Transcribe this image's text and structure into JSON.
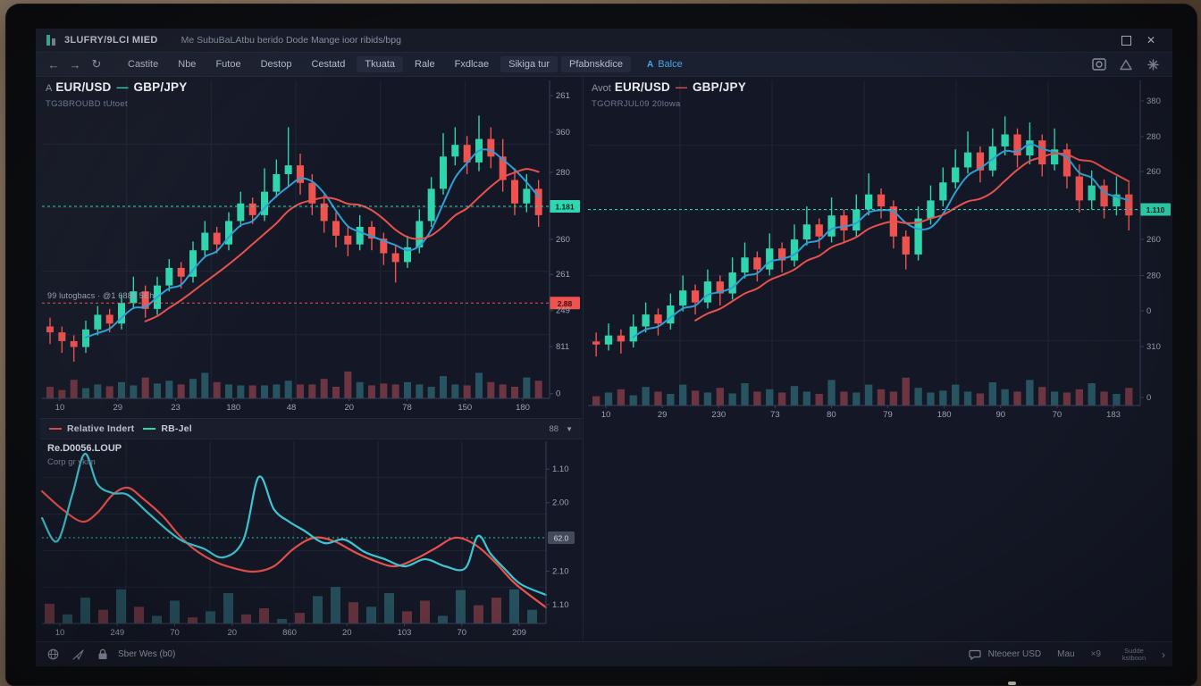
{
  "window": {
    "title": "3LUFRY/9LCI MIED",
    "subtitle": "Me SubuBaLAtbu berido Dode Mange ioor ribids/bpg"
  },
  "toolbar": {
    "items": [
      {
        "label": "Castite",
        "chip": false
      },
      {
        "label": "Nbe",
        "chip": false
      },
      {
        "label": "Futoe",
        "chip": false
      },
      {
        "label": "Destop",
        "chip": false
      },
      {
        "label": "Cestatd",
        "chip": false
      },
      {
        "label": "Tkuata",
        "chip": true
      },
      {
        "label": "Rale",
        "chip": false
      },
      {
        "label": "Fxdlcae",
        "chip": false
      },
      {
        "label": "Sikiga tur",
        "chip": true
      },
      {
        "label": "Pfabnskdice",
        "chip": true
      }
    ],
    "action_label": "Balce"
  },
  "status_bar": {
    "left_label": "Sber Wes (b0)",
    "items": [
      "Nteoeer USD",
      "Mau"
    ],
    "shortcut": "×9",
    "note": "Sudde\nkstboon"
  },
  "colors": {
    "up": "#2ed5ae",
    "down": "#ef5350",
    "ma_fast": "#2e9fd6",
    "ma_slow": "#e8514d",
    "vol_up": "#2b5f6b",
    "vol_down": "#7c3b46",
    "grid": "#1f2537",
    "axis": "#39415a",
    "label": "#9aa3b5",
    "accent_teal": "#2fd6b2",
    "accent_red": "#ef5350",
    "accent_blue": "#4ea3e8"
  },
  "chart_data": [
    {
      "id": "eurusd-left",
      "type": "candlestick",
      "prefix": "A",
      "symbol": "EUR/USD",
      "compare": "GBP/JPY",
      "subtitle": "TG3BROUBD  tUtoet",
      "overlay_note": "99 lutogbacs · @1 6888   5Eh",
      "legend_dash_color": "#2fd6b2",
      "ylim": [
        0,
        100
      ],
      "candles": [
        [
          16,
          14,
          10,
          19
        ],
        [
          14,
          11,
          7,
          16
        ],
        [
          11,
          9,
          4,
          13
        ],
        [
          9,
          15,
          7,
          18
        ],
        [
          15,
          20,
          13,
          23
        ],
        [
          20,
          17,
          14,
          22
        ],
        [
          17,
          24,
          15,
          27
        ],
        [
          24,
          28,
          22,
          33
        ],
        [
          28,
          22,
          19,
          30
        ],
        [
          22,
          30,
          20,
          33
        ],
        [
          30,
          36,
          28,
          39
        ],
        [
          36,
          33,
          29,
          38
        ],
        [
          33,
          42,
          31,
          45
        ],
        [
          42,
          48,
          40,
          52
        ],
        [
          48,
          44,
          41,
          50
        ],
        [
          44,
          52,
          42,
          55
        ],
        [
          52,
          58,
          50,
          62
        ],
        [
          58,
          54,
          51,
          60
        ],
        [
          54,
          62,
          52,
          70
        ],
        [
          62,
          68,
          60,
          73
        ],
        [
          68,
          71,
          64,
          84
        ],
        [
          71,
          65,
          61,
          75
        ],
        [
          65,
          58,
          54,
          68
        ],
        [
          58,
          52,
          48,
          61
        ],
        [
          52,
          47,
          43,
          55
        ],
        [
          47,
          44,
          40,
          50
        ],
        [
          44,
          50,
          42,
          54
        ],
        [
          50,
          46,
          42,
          52
        ],
        [
          46,
          41,
          37,
          48
        ],
        [
          41,
          38,
          31,
          44
        ],
        [
          38,
          43,
          36,
          47
        ],
        [
          43,
          52,
          41,
          56
        ],
        [
          52,
          63,
          50,
          67
        ],
        [
          63,
          74,
          61,
          82
        ],
        [
          74,
          78,
          71,
          84
        ],
        [
          78,
          72,
          68,
          81
        ],
        [
          72,
          80,
          69,
          88
        ],
        [
          80,
          74,
          70,
          84
        ],
        [
          74,
          66,
          62,
          80
        ],
        [
          66,
          58,
          54,
          70
        ],
        [
          58,
          63,
          55,
          68
        ],
        [
          63,
          54,
          50,
          66
        ]
      ],
      "volumes": [
        25,
        18,
        40,
        22,
        30,
        26,
        35,
        28,
        45,
        32,
        38,
        30,
        42,
        55,
        35,
        30,
        28,
        28,
        28,
        30,
        38,
        30,
        30,
        42,
        25,
        58,
        35,
        28,
        32,
        30,
        35,
        30,
        25,
        48,
        30,
        28,
        55,
        35,
        30,
        25,
        45,
        38
      ],
      "ma_fast_window": 4,
      "ma_slow_window": 9,
      "markers": [
        {
          "value": 57,
          "color": "#2fd6b2",
          "tag": "1.181",
          "tag_text": "#06261f"
        },
        {
          "value": 24,
          "color": "#ef5350",
          "tag": "2.88",
          "tag_text": "#3a0d0d"
        }
      ],
      "y_labels": [
        [
          "261",
          0.048
        ],
        [
          "360",
          0.163
        ],
        [
          "280",
          0.289
        ],
        [
          "260",
          0.5
        ],
        [
          "261",
          0.61
        ],
        [
          "249",
          0.724
        ],
        [
          "811",
          0.837
        ],
        [
          "0",
          0.985
        ]
      ],
      "x_labels": [
        "10",
        "29",
        "23",
        "180",
        "48",
        "20",
        "78",
        "150",
        "180"
      ]
    },
    {
      "id": "eurusd-right",
      "type": "candlestick",
      "prefix": "Avot",
      "symbol": "EUR/USD",
      "compare": "GBP/JPY",
      "subtitle": "TGORRJUL09  20lowa",
      "overlay_note": "",
      "legend_dash_color": "#e8514d",
      "ylim": [
        0,
        100
      ],
      "candles": [
        [
          13,
          12,
          8,
          16
        ],
        [
          12,
          15,
          10,
          19
        ],
        [
          15,
          13,
          9,
          17
        ],
        [
          13,
          18,
          11,
          22
        ],
        [
          18,
          22,
          16,
          26
        ],
        [
          22,
          19,
          15,
          24
        ],
        [
          19,
          25,
          17,
          29
        ],
        [
          25,
          30,
          23,
          35
        ],
        [
          30,
          26,
          22,
          32
        ],
        [
          26,
          33,
          24,
          37
        ],
        [
          33,
          29,
          25,
          35
        ],
        [
          29,
          36,
          27,
          41
        ],
        [
          36,
          41,
          34,
          46
        ],
        [
          41,
          37,
          33,
          43
        ],
        [
          37,
          44,
          35,
          49
        ],
        [
          44,
          40,
          36,
          46
        ],
        [
          40,
          47,
          38,
          52
        ],
        [
          47,
          52,
          45,
          58
        ],
        [
          52,
          48,
          44,
          54
        ],
        [
          48,
          55,
          46,
          61
        ],
        [
          55,
          50,
          46,
          57
        ],
        [
          50,
          57,
          48,
          62
        ],
        [
          57,
          62,
          55,
          69
        ],
        [
          62,
          58,
          54,
          64
        ],
        [
          58,
          48,
          44,
          60
        ],
        [
          48,
          42,
          37,
          50
        ],
        [
          42,
          54,
          40,
          58
        ],
        [
          54,
          60,
          52,
          65
        ],
        [
          60,
          66,
          58,
          71
        ],
        [
          66,
          71,
          64,
          77
        ],
        [
          71,
          76,
          69,
          83
        ],
        [
          76,
          70,
          66,
          78
        ],
        [
          70,
          78,
          68,
          84
        ],
        [
          78,
          82,
          75,
          88
        ],
        [
          82,
          75,
          71,
          84
        ],
        [
          75,
          80,
          72,
          86
        ],
        [
          80,
          72,
          68,
          82
        ],
        [
          72,
          77,
          70,
          84
        ],
        [
          77,
          68,
          64,
          79
        ],
        [
          68,
          60,
          56,
          72
        ],
        [
          60,
          65,
          57,
          70
        ],
        [
          65,
          58,
          54,
          67
        ],
        [
          58,
          62,
          55,
          68
        ],
        [
          62,
          55,
          50,
          66
        ]
      ],
      "volumes": [
        20,
        28,
        35,
        22,
        40,
        30,
        25,
        45,
        32,
        28,
        38,
        26,
        48,
        30,
        35,
        28,
        42,
        30,
        25,
        55,
        30,
        28,
        45,
        35,
        30,
        60,
        38,
        28,
        32,
        45,
        30,
        26,
        50,
        35,
        30,
        55,
        40,
        30,
        28,
        35,
        48,
        30,
        25,
        38
      ],
      "ma_fast_window": 4,
      "ma_slow_window": 9,
      "markers": [
        {
          "value": 57,
          "color": "#2fd6b2",
          "tag": "1.110",
          "tag_text": "#06261f"
        }
      ],
      "y_labels": [
        [
          "380",
          0.063
        ],
        [
          "280",
          0.173
        ],
        [
          "260",
          0.28
        ],
        [
          "260",
          0.489
        ],
        [
          "280",
          0.6
        ],
        [
          "0",
          0.709
        ],
        [
          "310",
          0.819
        ],
        [
          "0",
          0.975
        ]
      ],
      "x_labels": [
        "10",
        "29",
        "230",
        "73",
        "80",
        "79",
        "180",
        "90",
        "70",
        "183"
      ]
    },
    {
      "id": "rsi",
      "type": "line",
      "title": "Re.D0056.LOUP",
      "subtitle": "Corp gr vkim",
      "period_label": "88",
      "legend": [
        {
          "label": "Relative Indert",
          "color": "#e8514d"
        },
        {
          "label": "RB-Jel",
          "color": "#2fd6b2"
        }
      ],
      "series": [
        {
          "name": "rb-jel",
          "color": "#3ec6d0",
          "points": [
            [
              0,
              57
            ],
            [
              0.03,
              44
            ],
            [
              0.06,
              70
            ],
            [
              0.085,
              93
            ],
            [
              0.11,
              76
            ],
            [
              0.14,
              71
            ],
            [
              0.17,
              70
            ],
            [
              0.21,
              60
            ],
            [
              0.25,
              50
            ],
            [
              0.28,
              44
            ],
            [
              0.32,
              40
            ],
            [
              0.36,
              35
            ],
            [
              0.4,
              45
            ],
            [
              0.43,
              80
            ],
            [
              0.46,
              62
            ],
            [
              0.49,
              55
            ],
            [
              0.52,
              50
            ],
            [
              0.56,
              43
            ],
            [
              0.6,
              45
            ],
            [
              0.64,
              38
            ],
            [
              0.68,
              34
            ],
            [
              0.72,
              30
            ],
            [
              0.76,
              34
            ],
            [
              0.8,
              30
            ],
            [
              0.84,
              29
            ],
            [
              0.865,
              47
            ],
            [
              0.89,
              37
            ],
            [
              0.92,
              28
            ],
            [
              0.95,
              20
            ],
            [
              1,
              14
            ]
          ]
        },
        {
          "name": "relative-indert",
          "color": "#e8514d",
          "points": [
            [
              0,
              72
            ],
            [
              0.04,
              62
            ],
            [
              0.08,
              55
            ],
            [
              0.11,
              60
            ],
            [
              0.14,
              70
            ],
            [
              0.17,
              74
            ],
            [
              0.2,
              68
            ],
            [
              0.24,
              58
            ],
            [
              0.27,
              48
            ],
            [
              0.3,
              40
            ],
            [
              0.34,
              33
            ],
            [
              0.38,
              29
            ],
            [
              0.42,
              27
            ],
            [
              0.46,
              30
            ],
            [
              0.5,
              40
            ],
            [
              0.54,
              46
            ],
            [
              0.58,
              44
            ],
            [
              0.62,
              38
            ],
            [
              0.66,
              33
            ],
            [
              0.7,
              30
            ],
            [
              0.74,
              34
            ],
            [
              0.78,
              40
            ],
            [
              0.82,
              46
            ],
            [
              0.86,
              42
            ],
            [
              0.9,
              32
            ],
            [
              0.94,
              20
            ],
            [
              1,
              7
            ]
          ]
        }
      ],
      "bars": {
        "values": [
          26,
          12,
          34,
          18,
          45,
          22,
          10,
          30,
          8,
          16,
          40,
          12,
          20,
          6,
          14,
          36,
          48,
          28,
          22,
          40,
          16,
          30,
          10,
          44,
          24,
          34,
          45,
          18
        ],
        "colors": [
          "r",
          "t",
          "t",
          "r",
          "t",
          "r",
          "t",
          "t",
          "r",
          "t",
          "t",
          "r",
          "r",
          "t",
          "r",
          "t",
          "t",
          "r",
          "t",
          "t",
          "r",
          "r",
          "t",
          "t",
          "r",
          "r",
          "t",
          "t"
        ]
      },
      "marker": {
        "value": 46,
        "color": "#2fd6b2",
        "tag": "62.0",
        "tag_bg": "#424a5c",
        "tag_text": "#d5dae6"
      },
      "y_labels": [
        [
          "1.10",
          0.153
        ],
        [
          "2.00",
          0.337
        ],
        [
          "2.10",
          0.713
        ],
        [
          "1.10",
          0.896
        ]
      ],
      "x_labels": [
        "10",
        "249",
        "70",
        "20",
        "860",
        "20",
        "103",
        "70",
        "209"
      ]
    }
  ]
}
